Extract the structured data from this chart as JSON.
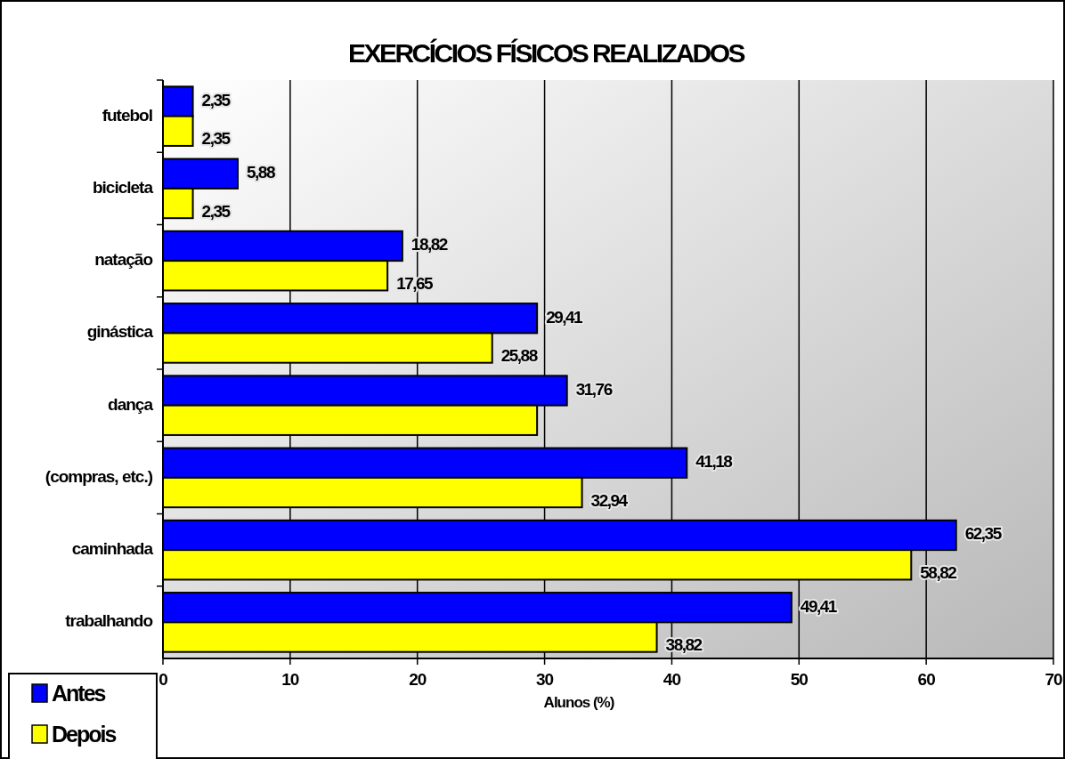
{
  "chart_data": {
    "type": "bar",
    "orientation": "horizontal",
    "title": "EXERCÍCIOS FÍSICOS REALIZADOS",
    "xlabel": "Alunos (%)",
    "categories": [
      "futebol",
      "bicicleta",
      "natação",
      "ginástica",
      "dança",
      "(compras, etc.)",
      "caminhada",
      "trabalhando"
    ],
    "series": [
      {
        "name": "Antes",
        "color": "#0000ff",
        "values": [
          2.35,
          5.88,
          18.82,
          29.41,
          31.76,
          41.18,
          62.35,
          49.41
        ],
        "value_labels": [
          "2,35",
          "5,88",
          "18,82",
          "29,41",
          "31,76",
          "41,18",
          "62,35",
          "49,41"
        ]
      },
      {
        "name": "Depois",
        "color": "#ffff00",
        "values": [
          2.35,
          2.35,
          17.65,
          25.88,
          29.41,
          32.94,
          58.82,
          38.82
        ],
        "value_labels": [
          "2,35",
          "2,35",
          "17,65",
          "25,88",
          null,
          "32,94",
          "58,82",
          "38,82"
        ]
      }
    ],
    "xlim": [
      0,
      70
    ],
    "xticks": [
      0,
      10,
      20,
      30,
      40,
      50,
      60,
      70
    ],
    "grid": "x",
    "legend": "bottom left"
  }
}
